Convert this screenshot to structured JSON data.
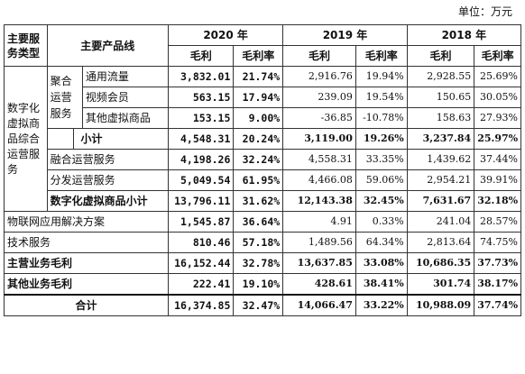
{
  "unit": "单位：万元",
  "header": {
    "type_col": "主要服务类型",
    "line_col": "主要产品线",
    "years": [
      "2020 年",
      "2019 年",
      "2018 年"
    ],
    "gross": "毛利",
    "margin": "毛利率"
  },
  "groups": {
    "digital": "数字化虚拟商品综合运营服务",
    "agg": "聚合运营服务"
  },
  "rows": [
    {
      "label": "通用流量",
      "v": [
        "3,832.01",
        "21.74%",
        "2,916.76",
        "19.94%",
        "2,928.55",
        "25.69%"
      ]
    },
    {
      "label": "视频会员",
      "v": [
        "563.15",
        "17.94%",
        "239.09",
        "19.54%",
        "150.65",
        "30.05%"
      ]
    },
    {
      "label": "其他虚拟商品",
      "v": [
        "153.15",
        "9.00%",
        "-36.85",
        "-10.78%",
        "158.63",
        "27.93%"
      ]
    },
    {
      "label": "小计",
      "v": [
        "4,548.31",
        "20.24%",
        "3,119.00",
        "19.26%",
        "3,237.84",
        "25.97%"
      ]
    },
    {
      "label": "融合运营服务",
      "v": [
        "4,198.26",
        "32.24%",
        "4,558.31",
        "33.35%",
        "1,439.62",
        "37.44%"
      ]
    },
    {
      "label": "分发运营服务",
      "v": [
        "5,049.54",
        "61.95%",
        "4,466.08",
        "59.06%",
        "2,954.21",
        "39.91%"
      ]
    },
    {
      "label": "数字化虚拟商品小计",
      "v": [
        "13,796.11",
        "31.62%",
        "12,143.38",
        "32.45%",
        "7,631.67",
        "32.18%"
      ]
    },
    {
      "label": "物联网应用解决方案",
      "v": [
        "1,545.87",
        "36.64%",
        "4.91",
        "0.33%",
        "241.04",
        "28.57%"
      ]
    },
    {
      "label": "技术服务",
      "v": [
        "810.46",
        "57.18%",
        "1,489.56",
        "64.34%",
        "2,813.64",
        "74.75%"
      ]
    },
    {
      "label": "主营业务毛利",
      "v": [
        "16,152.44",
        "32.78%",
        "13,637.85",
        "33.08%",
        "10,686.35",
        "37.73%"
      ]
    },
    {
      "label": "其他业务毛利",
      "v": [
        "222.41",
        "19.10%",
        "428.61",
        "38.41%",
        "301.74",
        "38.17%"
      ]
    },
    {
      "label": "合计",
      "v": [
        "16,374.85",
        "32.47%",
        "14,066.47",
        "33.22%",
        "10,988.09",
        "37.74%"
      ]
    }
  ]
}
